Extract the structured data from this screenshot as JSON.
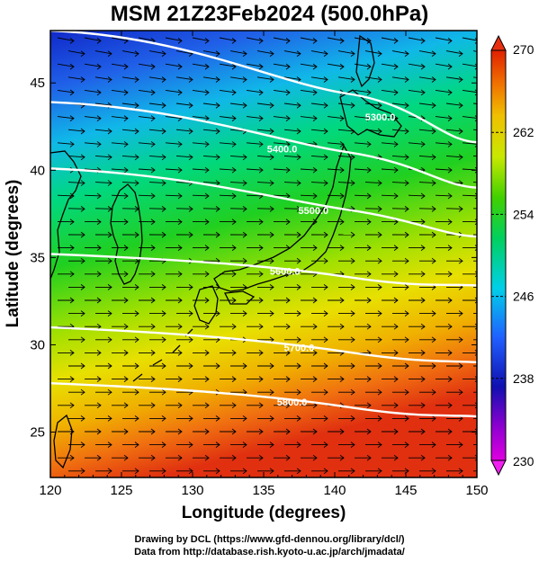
{
  "title": "MSM 21Z23Feb2024 (500.0hPa)",
  "x_axis": {
    "label": "Longitude (degrees)",
    "min": 120,
    "max": 150,
    "ticks": [
      120,
      125,
      130,
      135,
      140,
      145,
      150
    ]
  },
  "y_axis": {
    "label": "Latitude  (degrees)",
    "min": 22.4,
    "max": 48,
    "ticks": [
      25,
      30,
      35,
      40,
      45
    ]
  },
  "colorbar": {
    "min": 230,
    "max": 270,
    "ticks": [
      230,
      238,
      246,
      254,
      262,
      270
    ],
    "colors": [
      "#e000e0",
      "#a000e0",
      "#1010c0",
      "#2060ff",
      "#00d0e0",
      "#00d070",
      "#40d000",
      "#c8e800",
      "#f0c000",
      "#f07000",
      "#e02000"
    ]
  },
  "contours": [
    {
      "label": "5300.0",
      "lat_left": 48.0,
      "lat_right": 41.6,
      "label_lon": 143.2
    },
    {
      "label": "5400.0",
      "lat_left": 43.9,
      "lat_right": 39.0,
      "label_lon": 136.3
    },
    {
      "label": "5500.0",
      "lat_left": 40.1,
      "lat_right": 36.2,
      "label_lon": 138.5
    },
    {
      "label": "5600.0",
      "lat_left": 35.2,
      "lat_right": 33.4,
      "label_lon": 136.5
    },
    {
      "label": "5700.0",
      "lat_left": 31.0,
      "lat_right": 29.0,
      "label_lon": 137.5
    },
    {
      "label": "5800.0",
      "lat_left": 27.8,
      "lat_right": 25.9,
      "label_lon": 137.0
    }
  ],
  "credits": [
    "Drawing by DCL (https://www.gfd-dennou.org/library/dcl/)",
    "Data from http://database.rish.kyoto-u.ac.jp/arch/jmadata/"
  ]
}
